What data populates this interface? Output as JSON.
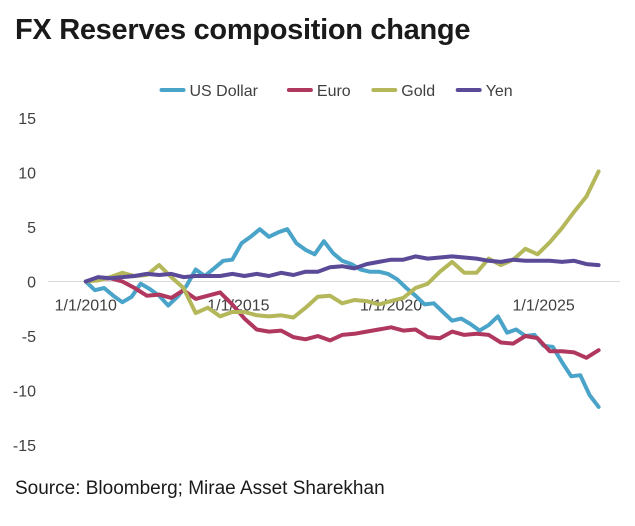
{
  "chart_data": {
    "type": "line",
    "title": "FX Reserves composition change",
    "source": "Source: Bloomberg; Mirae Asset Sharekhan",
    "xlabel": "",
    "ylabel": "",
    "ylim": [
      -15,
      15
    ],
    "y_ticks": [
      15,
      10,
      5,
      0,
      -5,
      -10,
      -15
    ],
    "x_ticks": [
      {
        "label": "1/1/2010",
        "x": 2010
      },
      {
        "label": "1/1/2015",
        "x": 2015
      },
      {
        "label": "1/1/2020",
        "x": 2020
      },
      {
        "label": "1/1/2025",
        "x": 2025
      }
    ],
    "xlim": [
      2008.5,
      2027.5
    ],
    "legend_position": "top",
    "grid": false,
    "series": [
      {
        "name": "US Dollar",
        "color": "#4aa3c8",
        "points": [
          [
            2010.0,
            0.0
          ],
          [
            2010.3,
            -0.8
          ],
          [
            2010.6,
            -0.6
          ],
          [
            2010.9,
            -1.3
          ],
          [
            2011.2,
            -1.9
          ],
          [
            2011.5,
            -1.4
          ],
          [
            2011.8,
            -0.2
          ],
          [
            2012.1,
            -0.7
          ],
          [
            2012.4,
            -1.3
          ],
          [
            2012.7,
            -2.2
          ],
          [
            2013.0,
            -1.4
          ],
          [
            2013.3,
            -0.4
          ],
          [
            2013.6,
            1.1
          ],
          [
            2013.9,
            0.5
          ],
          [
            2014.2,
            1.2
          ],
          [
            2014.5,
            1.9
          ],
          [
            2014.8,
            2.0
          ],
          [
            2015.1,
            3.5
          ],
          [
            2015.4,
            4.1
          ],
          [
            2015.7,
            4.8
          ],
          [
            2016.0,
            4.1
          ],
          [
            2016.3,
            4.5
          ],
          [
            2016.6,
            4.8
          ],
          [
            2016.9,
            3.5
          ],
          [
            2017.2,
            2.9
          ],
          [
            2017.5,
            2.5
          ],
          [
            2017.8,
            3.7
          ],
          [
            2018.1,
            2.6
          ],
          [
            2018.4,
            1.9
          ],
          [
            2018.7,
            1.6
          ],
          [
            2019.0,
            1.1
          ],
          [
            2019.3,
            0.9
          ],
          [
            2019.6,
            0.9
          ],
          [
            2019.9,
            0.7
          ],
          [
            2020.2,
            0.2
          ],
          [
            2020.5,
            -0.6
          ],
          [
            2020.8,
            -1.3
          ],
          [
            2021.1,
            -2.1
          ],
          [
            2021.4,
            -2.0
          ],
          [
            2021.7,
            -2.8
          ],
          [
            2022.0,
            -3.6
          ],
          [
            2022.3,
            -3.4
          ],
          [
            2022.6,
            -3.9
          ],
          [
            2022.9,
            -4.5
          ],
          [
            2023.2,
            -4.0
          ],
          [
            2023.5,
            -3.2
          ],
          [
            2023.8,
            -4.7
          ],
          [
            2024.1,
            -4.4
          ],
          [
            2024.4,
            -5.0
          ],
          [
            2024.7,
            -4.9
          ],
          [
            2025.0,
            -5.9
          ],
          [
            2025.3,
            -6.0
          ],
          [
            2025.6,
            -7.4
          ],
          [
            2025.9,
            -8.7
          ],
          [
            2026.2,
            -8.6
          ],
          [
            2026.5,
            -10.4
          ],
          [
            2026.8,
            -11.5
          ]
        ]
      },
      {
        "name": "Euro",
        "color": "#b0385e",
        "points": [
          [
            2010.0,
            0.0
          ],
          [
            2010.4,
            0.2
          ],
          [
            2010.8,
            0.3
          ],
          [
            2011.2,
            0.0
          ],
          [
            2011.6,
            -0.6
          ],
          [
            2012.0,
            -1.3
          ],
          [
            2012.4,
            -1.2
          ],
          [
            2012.8,
            -1.5
          ],
          [
            2013.2,
            -0.8
          ],
          [
            2013.6,
            -1.6
          ],
          [
            2014.0,
            -1.3
          ],
          [
            2014.4,
            -1.0
          ],
          [
            2014.8,
            -2.1
          ],
          [
            2015.2,
            -3.4
          ],
          [
            2015.6,
            -4.4
          ],
          [
            2016.0,
            -4.6
          ],
          [
            2016.4,
            -4.5
          ],
          [
            2016.8,
            -5.1
          ],
          [
            2017.2,
            -5.3
          ],
          [
            2017.6,
            -5.0
          ],
          [
            2018.0,
            -5.4
          ],
          [
            2018.4,
            -4.9
          ],
          [
            2018.8,
            -4.8
          ],
          [
            2019.2,
            -4.6
          ],
          [
            2019.6,
            -4.4
          ],
          [
            2020.0,
            -4.2
          ],
          [
            2020.4,
            -4.5
          ],
          [
            2020.8,
            -4.4
          ],
          [
            2021.2,
            -5.1
          ],
          [
            2021.6,
            -5.2
          ],
          [
            2022.0,
            -4.6
          ],
          [
            2022.4,
            -4.9
          ],
          [
            2022.8,
            -4.8
          ],
          [
            2023.2,
            -4.9
          ],
          [
            2023.6,
            -5.6
          ],
          [
            2024.0,
            -5.7
          ],
          [
            2024.4,
            -5.0
          ],
          [
            2024.8,
            -5.2
          ],
          [
            2025.2,
            -6.4
          ],
          [
            2025.6,
            -6.4
          ],
          [
            2026.0,
            -6.5
          ],
          [
            2026.4,
            -7.0
          ],
          [
            2026.8,
            -6.3
          ]
        ]
      },
      {
        "name": "Gold",
        "color": "#b4b85a",
        "points": [
          [
            2010.0,
            0.0
          ],
          [
            2010.4,
            0.1
          ],
          [
            2010.8,
            0.4
          ],
          [
            2011.2,
            0.8
          ],
          [
            2011.6,
            0.5
          ],
          [
            2012.0,
            0.6
          ],
          [
            2012.4,
            1.5
          ],
          [
            2012.8,
            0.4
          ],
          [
            2013.2,
            -0.6
          ],
          [
            2013.6,
            -2.9
          ],
          [
            2014.0,
            -2.4
          ],
          [
            2014.4,
            -3.2
          ],
          [
            2014.8,
            -2.8
          ],
          [
            2015.2,
            -2.8
          ],
          [
            2015.6,
            -3.1
          ],
          [
            2016.0,
            -3.2
          ],
          [
            2016.4,
            -3.1
          ],
          [
            2016.8,
            -3.3
          ],
          [
            2017.2,
            -2.4
          ],
          [
            2017.6,
            -1.4
          ],
          [
            2018.0,
            -1.3
          ],
          [
            2018.4,
            -2.0
          ],
          [
            2018.8,
            -1.7
          ],
          [
            2019.2,
            -1.8
          ],
          [
            2019.6,
            -2.1
          ],
          [
            2020.0,
            -1.8
          ],
          [
            2020.4,
            -1.5
          ],
          [
            2020.8,
            -0.6
          ],
          [
            2021.2,
            -0.2
          ],
          [
            2021.6,
            0.9
          ],
          [
            2022.0,
            1.8
          ],
          [
            2022.4,
            0.8
          ],
          [
            2022.8,
            0.8
          ],
          [
            2023.2,
            2.1
          ],
          [
            2023.6,
            1.5
          ],
          [
            2024.0,
            2.0
          ],
          [
            2024.4,
            3.0
          ],
          [
            2024.8,
            2.5
          ],
          [
            2025.2,
            3.6
          ],
          [
            2025.6,
            4.9
          ],
          [
            2026.0,
            6.4
          ],
          [
            2026.4,
            7.8
          ],
          [
            2026.8,
            10.1
          ]
        ]
      },
      {
        "name": "Yen",
        "color": "#5a4a98",
        "points": [
          [
            2010.0,
            0.0
          ],
          [
            2010.4,
            0.4
          ],
          [
            2010.8,
            0.3
          ],
          [
            2011.2,
            0.4
          ],
          [
            2011.6,
            0.5
          ],
          [
            2012.0,
            0.7
          ],
          [
            2012.4,
            0.6
          ],
          [
            2012.8,
            0.7
          ],
          [
            2013.2,
            0.4
          ],
          [
            2013.6,
            0.5
          ],
          [
            2014.0,
            0.5
          ],
          [
            2014.4,
            0.5
          ],
          [
            2014.8,
            0.7
          ],
          [
            2015.2,
            0.5
          ],
          [
            2015.6,
            0.7
          ],
          [
            2016.0,
            0.5
          ],
          [
            2016.4,
            0.8
          ],
          [
            2016.8,
            0.6
          ],
          [
            2017.2,
            0.9
          ],
          [
            2017.6,
            0.9
          ],
          [
            2018.0,
            1.3
          ],
          [
            2018.4,
            1.4
          ],
          [
            2018.8,
            1.2
          ],
          [
            2019.2,
            1.6
          ],
          [
            2019.6,
            1.8
          ],
          [
            2020.0,
            2.0
          ],
          [
            2020.4,
            2.0
          ],
          [
            2020.8,
            2.3
          ],
          [
            2021.2,
            2.1
          ],
          [
            2021.6,
            2.2
          ],
          [
            2022.0,
            2.3
          ],
          [
            2022.4,
            2.2
          ],
          [
            2022.8,
            2.1
          ],
          [
            2023.2,
            1.9
          ],
          [
            2023.6,
            1.8
          ],
          [
            2024.0,
            2.0
          ],
          [
            2024.4,
            1.9
          ],
          [
            2024.8,
            1.9
          ],
          [
            2025.2,
            1.9
          ],
          [
            2025.6,
            1.8
          ],
          [
            2026.0,
            1.9
          ],
          [
            2026.4,
            1.6
          ],
          [
            2026.8,
            1.5
          ]
        ]
      }
    ]
  }
}
